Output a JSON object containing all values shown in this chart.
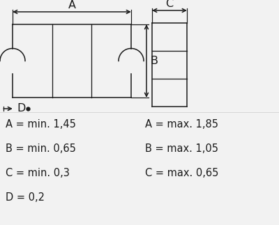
{
  "bg_color": "#f2f2f2",
  "line_color": "#1a1a1a",
  "text_color": "#1a1a1a",
  "labels_left": [
    "A = min. 1,45",
    "B = min. 0,65",
    "C = min. 0,3",
    "D = 0,2"
  ],
  "labels_right": [
    "A = max. 1,85",
    "B = max. 1,05",
    "C = max. 0,65"
  ],
  "font_size": 10.5,
  "dim_font_size": 11.5
}
